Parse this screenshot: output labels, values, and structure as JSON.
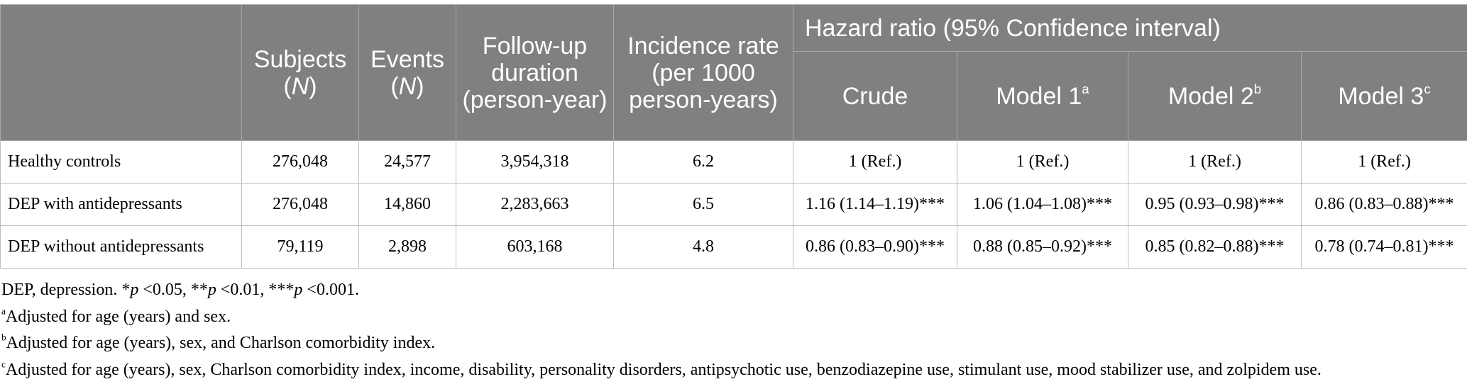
{
  "table": {
    "header": {
      "subjects": [
        "Subjects",
        "(",
        "N",
        ")"
      ],
      "events": [
        "Events",
        "(",
        "N",
        ")"
      ],
      "followup": "Follow-up duration (person-year)",
      "incidence": "Incidence rate (per 1000 person-years)",
      "hazard_ratio": "Hazard ratio (95% Confidence interval)",
      "crude": "Crude",
      "model1": {
        "label": "Model 1",
        "note": "a"
      },
      "model2": {
        "label": "Model 2",
        "note": "b"
      },
      "model3": {
        "label": "Model 3",
        "note": "c"
      }
    },
    "rows": [
      [
        "Healthy controls",
        "276,048",
        "24,577",
        "3,954,318",
        "6.2",
        "1 (Ref.)",
        "1 (Ref.)",
        "1 (Ref.)",
        "1 (Ref.)"
      ],
      [
        "DEP with antidepressants",
        "276,048",
        "14,860",
        "2,283,663",
        "6.5",
        "1.16 (1.14–1.19)***",
        "1.06 (1.04–1.08)***",
        "0.95 (0.93–0.98)***",
        "0.86 (0.83–0.88)***"
      ],
      [
        "DEP without antidepressants",
        "79,119",
        "2,898",
        "603,168",
        "4.8",
        "0.86 (0.83–0.90)***",
        "0.88 (0.85–0.92)***",
        "0.85 (0.82–0.88)***",
        "0.78 (0.74–0.81)***"
      ]
    ]
  },
  "notes": {
    "abbreviations": [
      "DEP, depression. *",
      "p",
      " <0.05, **",
      "p",
      " <0.01, ***",
      "p",
      " <0.001."
    ],
    "footnotes": [
      {
        "mark": "a",
        "text": "Adjusted for age (years) and sex."
      },
      {
        "mark": "b",
        "text": "Adjusted for age (years), sex, and Charlson comorbidity index."
      },
      {
        "mark": "c",
        "text": "Adjusted for age (years), sex, Charlson comorbidity index, income, disability, personality disorders, antipsychotic use, benzodiazepine use, stimulant use, mood stabilizer use, and zolpidem use."
      }
    ]
  }
}
